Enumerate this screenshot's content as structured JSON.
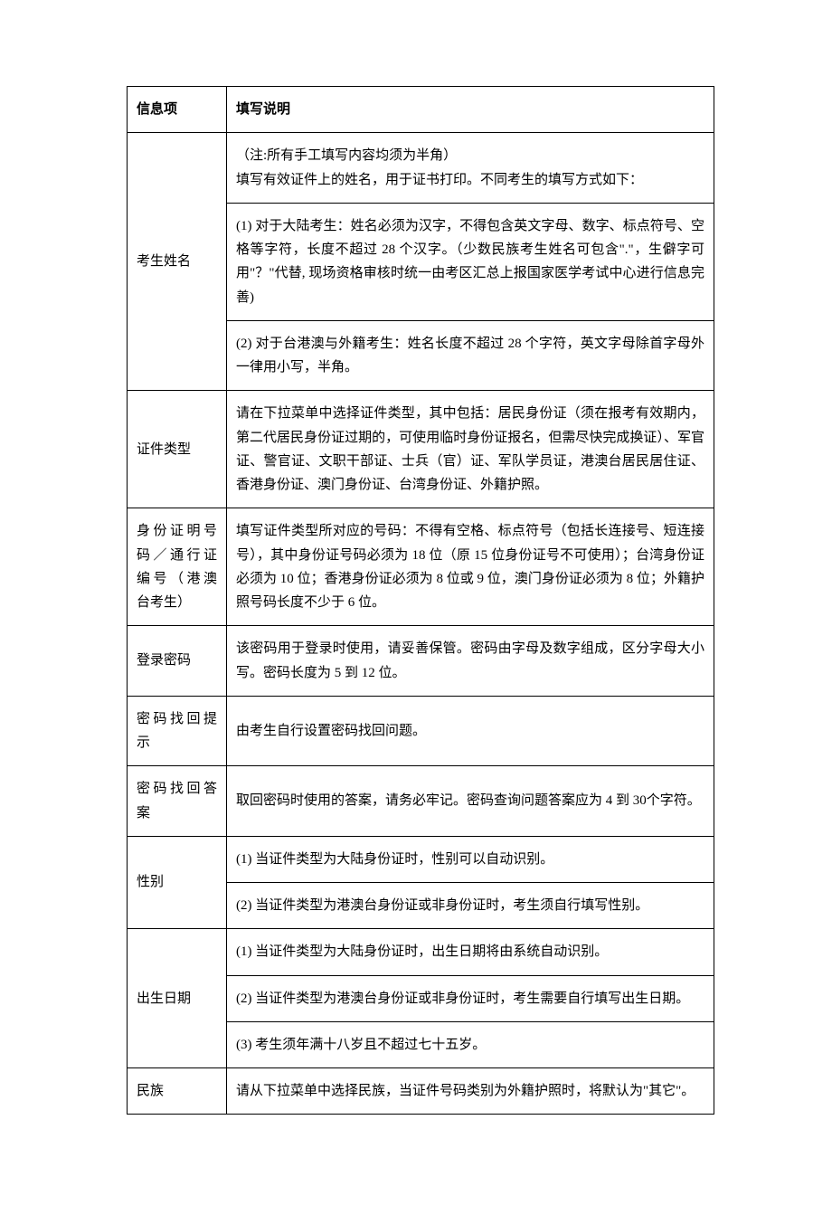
{
  "table": {
    "header": {
      "col1": "信息项",
      "col2": "填写说明"
    },
    "rows": [
      {
        "label": "考生姓名",
        "cells": [
          "（注:所有手工填写内容均须为半角）\n填写有效证件上的姓名，用于证书打印。不同考生的填写方式如下：",
          "(1) 对于大陆考生：姓名必须为汉字，不得包含英文字母、数字、标点符号、空格等字符，长度不超过 28 个汉字。（少数民族考生姓名可包含\".\"，生僻字可用\"？\"代替, 现场资格审核时统一由考区汇总上报国家医学考试中心进行信息完善)",
          "(2) 对于台港澳与外籍考生：姓名长度不超过 28 个字符，英文字母除首字母外一律用小写，半角。"
        ]
      },
      {
        "label": "证件类型",
        "cells": [
          "请在下拉菜单中选择证件类型，其中包括：居民身份证（须在报考有效期内，第二代居民身份证过期的，可使用临时身份证报名，但需尽快完成换证）、军官证、警官证、文职干部证、士兵（官）证、军队学员证，港澳台居民居住证、香港身份证、澳门身份证、台湾身份证、外籍护照。"
        ]
      },
      {
        "label": "身份证明号码／通行证编号（港澳台考生）",
        "cells": [
          "填写证件类型所对应的号码：不得有空格、标点符号（包括长连接号、短连接号），其中身份证号码必须为 18 位（原 15 位身份证号不可使用）；台湾身份证必须为 10 位；香港身份证必须为 8 位或 9 位，澳门身份证必须为 8 位；外籍护照号码长度不少于 6 位。"
        ]
      },
      {
        "label": "登录密码",
        "cells": [
          "该密码用于登录时使用，请妥善保管。密码由字母及数字组成，区分字母大小写。密码长度为 5 到 12 位。"
        ]
      },
      {
        "label": "密码找回提示",
        "cells": [
          "由考生自行设置密码找回问题。"
        ]
      },
      {
        "label": "密码找回答案",
        "cells": [
          "取回密码时使用的答案，请务必牢记。密码查询问题答案应为 4 到 30个字符。"
        ]
      },
      {
        "label": "性别",
        "cells": [
          "(1) 当证件类型为大陆身份证时，性别可以自动识别。",
          "(2) 当证件类型为港澳台身份证或非身份证时，考生须自行填写性别。"
        ]
      },
      {
        "label": "出生日期",
        "cells": [
          "(1) 当证件类型为大陆身份证时，出生日期将由系统自动识别。",
          "(2) 当证件类型为港澳台身份证或非身份证时，考生需要自行填写出生日期。",
          "(3) 考生须年满十八岁且不超过七十五岁。"
        ]
      },
      {
        "label": "民族",
        "cells": [
          "请从下拉菜单中选择民族，当证件号码类别为外籍护照时，将默认为\"其它\"。"
        ]
      }
    ]
  }
}
